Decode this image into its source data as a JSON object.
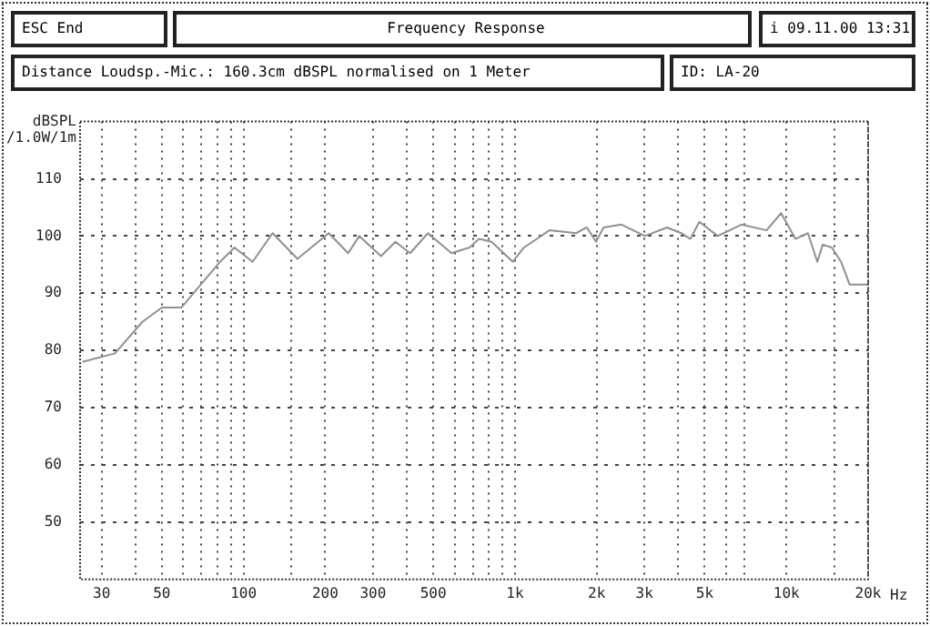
{
  "chart_data": {
    "type": "line",
    "title": "Frequency Response",
    "ylabel": "dBSPL /1.0W/1m",
    "xlabel": "Hz",
    "annotations": [
      "ESC End",
      "i 09.11.00 13:31",
      "Distance Loudsp.-Mic.: 160.3cm dBSPL normalised on 1 Meter",
      "ID: LA-20"
    ],
    "xlim": [
      25,
      20000
    ],
    "log": "x",
    "xticks": [
      30,
      {
        "value": 40,
        "label": null
      },
      50,
      {
        "value": 60,
        "label": null
      },
      {
        "value": 70,
        "label": null
      },
      {
        "value": 80,
        "label": null
      },
      {
        "value": 90,
        "label": null
      },
      100,
      {
        "value": 150,
        "label": null
      },
      200,
      300,
      {
        "value": 400,
        "label": null
      },
      500,
      {
        "value": 600,
        "label": null
      },
      {
        "value": 700,
        "label": null
      },
      {
        "value": 800,
        "label": null
      },
      {
        "value": 900,
        "label": null
      },
      {
        "value": 1000,
        "label": "1k"
      },
      {
        "value": 2000,
        "label": "2k"
      },
      {
        "value": 3000,
        "label": "3k"
      },
      {
        "value": 4000,
        "label": null
      },
      {
        "value": 5000,
        "label": "5k"
      },
      {
        "value": 6000,
        "label": null
      },
      {
        "value": 7000,
        "label": null
      },
      {
        "value": 10000,
        "label": "10k"
      },
      {
        "value": 15000,
        "label": null
      },
      {
        "value": 20000,
        "label": "20k"
      }
    ],
    "ylim": [
      40,
      120
    ],
    "yticks": [
      50,
      60,
      70,
      80,
      90,
      100,
      110
    ],
    "grid": true,
    "marker": "none",
    "series": [
      {
        "color": "#909090",
        "x": [
          25.5,
          33.6,
          42.4,
          50,
          59,
          82,
          92.6,
          108,
          128,
          158,
          206,
          243,
          267,
          321,
          363,
          411,
          478,
          584,
          681,
          737,
          820,
          982,
          1080,
          1340,
          1680,
          1840,
          1990,
          2120,
          2470,
          3010,
          3630,
          4100,
          4430,
          4780,
          5580,
          6830,
          8450,
          9560,
          10800,
          12000,
          13000,
          13600,
          14700,
          15900,
          17100,
          20000
        ],
        "values": [
          78,
          79.5,
          85,
          87.5,
          87.5,
          95.5,
          98,
          95.5,
          100.5,
          96,
          100.5,
          97,
          100,
          96.5,
          99,
          97,
          100.5,
          97,
          98,
          99.5,
          99,
          95.5,
          98,
          101,
          100.5,
          101.5,
          99,
          101.5,
          102,
          100,
          101.5,
          100.5,
          99.5,
          102.5,
          100,
          102,
          101,
          104,
          99.5,
          100.5,
          95.5,
          98.5,
          98,
          95.5,
          91.5,
          91.5
        ]
      }
    ]
  }
}
